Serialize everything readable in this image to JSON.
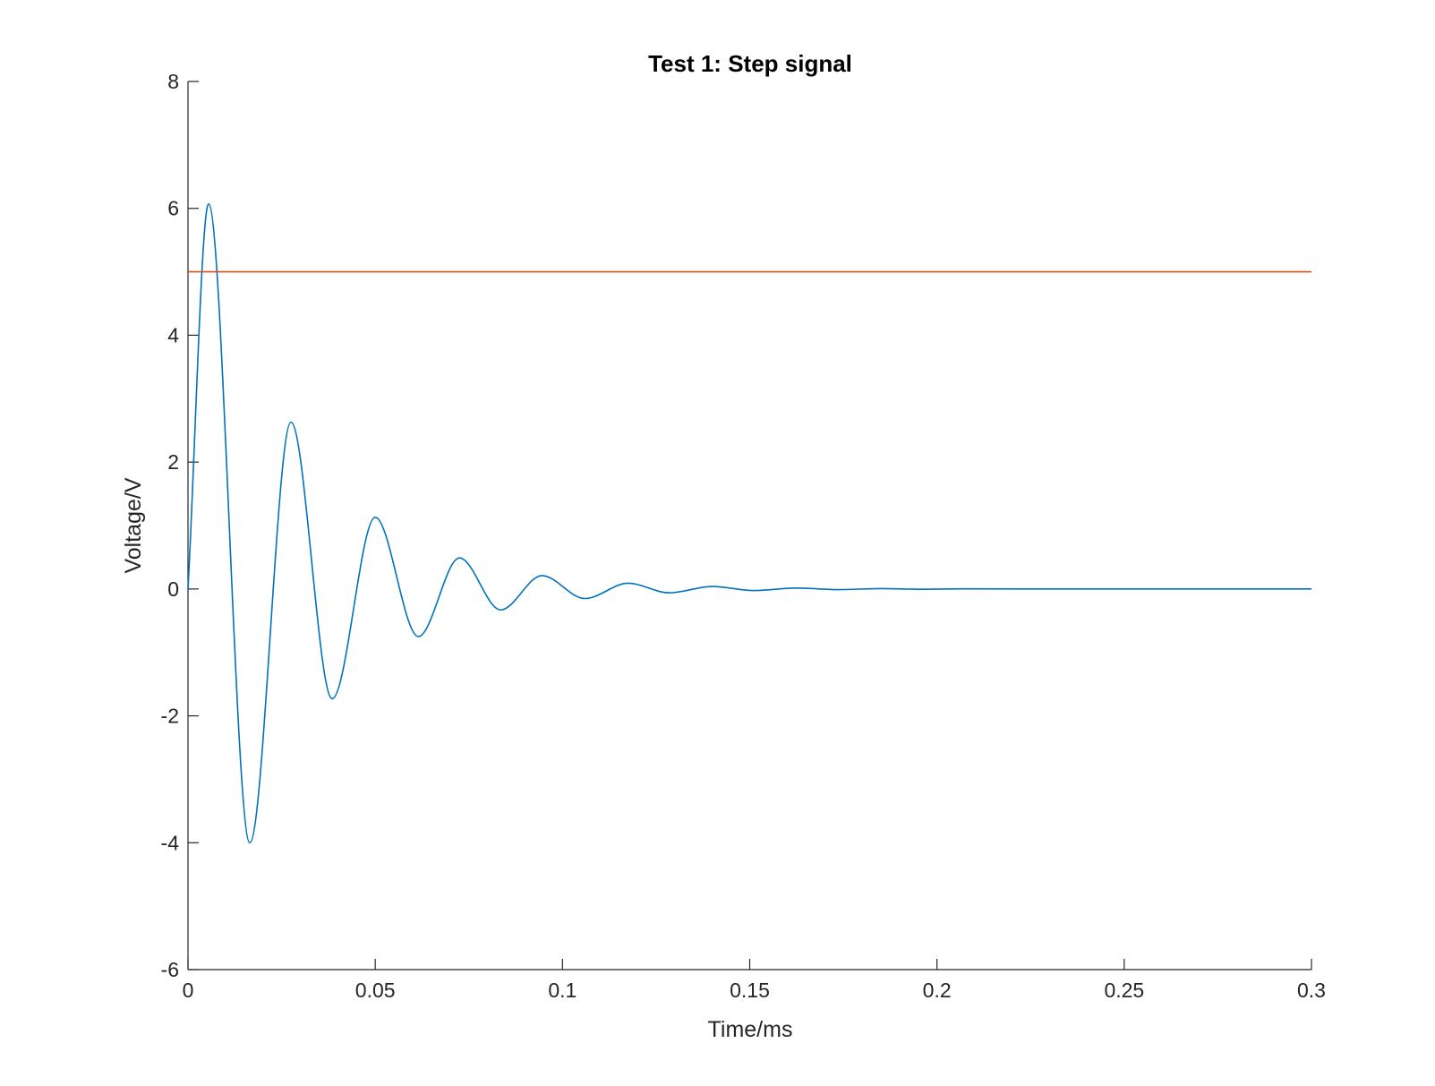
{
  "chart_data": {
    "type": "line",
    "title": "Test 1: Step signal",
    "xlabel": "Time/ms",
    "ylabel": "Voltage/V",
    "xlim": [
      0,
      0.3
    ],
    "ylim": [
      -6,
      8
    ],
    "xticks": [
      0,
      0.05,
      0.1,
      0.15,
      0.2,
      0.25,
      0.3
    ],
    "xtick_labels": [
      "0",
      "0.05",
      "0.1",
      "0.15",
      "0.2",
      "0.25",
      "0.3"
    ],
    "yticks": [
      -6,
      -4,
      -2,
      0,
      2,
      4,
      6,
      8
    ],
    "ytick_labels": [
      "-6",
      "-4",
      "-2",
      "0",
      "2",
      "4",
      "6",
      "8"
    ],
    "grid": false,
    "legend": "none",
    "series": [
      {
        "color": "#0072BD",
        "x": [
          0,
          0.0055,
          0.0165,
          0.0275,
          0.0385,
          0.05,
          0.0615,
          0.0725,
          0.0835,
          0.0945,
          0.106,
          0.1175,
          0.1285,
          0.14,
          0.151,
          0.1625,
          0.1735,
          0.185,
          0.196,
          0.207,
          0.22,
          0.3
        ],
        "y": [
          0,
          6.07,
          -4.0,
          2.63,
          -1.73,
          1.13,
          -0.75,
          0.49,
          -0.33,
          0.21,
          -0.15,
          0.09,
          -0.06,
          0.04,
          -0.025,
          0.015,
          -0.01,
          0.006,
          -0.004,
          0.002,
          0,
          0
        ]
      },
      {
        "color": "#D95319",
        "x": [
          0,
          0.3
        ],
        "y": [
          5,
          5
        ]
      }
    ]
  }
}
